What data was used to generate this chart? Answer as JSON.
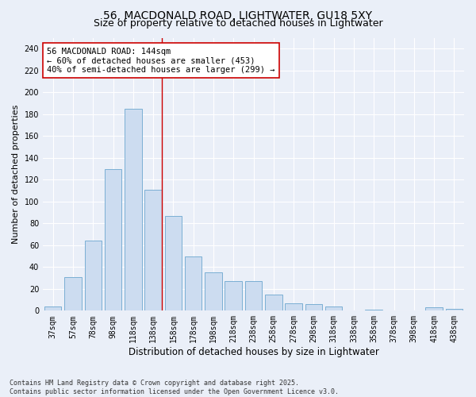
{
  "title": "56, MACDONALD ROAD, LIGHTWATER, GU18 5XY",
  "subtitle": "Size of property relative to detached houses in Lightwater",
  "xlabel": "Distribution of detached houses by size in Lightwater",
  "ylabel": "Number of detached properties",
  "categories": [
    "37sqm",
    "57sqm",
    "78sqm",
    "98sqm",
    "118sqm",
    "138sqm",
    "158sqm",
    "178sqm",
    "198sqm",
    "218sqm",
    "238sqm",
    "258sqm",
    "278sqm",
    "298sqm",
    "318sqm",
    "338sqm",
    "358sqm",
    "378sqm",
    "398sqm",
    "418sqm",
    "438sqm"
  ],
  "values": [
    4,
    31,
    64,
    130,
    185,
    111,
    87,
    50,
    35,
    27,
    27,
    15,
    7,
    6,
    4,
    0,
    1,
    0,
    0,
    3,
    2
  ],
  "bar_color": "#ccdcf0",
  "bar_edge_color": "#7bafd4",
  "vline_x_index": 5.42,
  "vline_color": "#cc0000",
  "annotation_text": "56 MACDONALD ROAD: 144sqm\n← 60% of detached houses are smaller (453)\n40% of semi-detached houses are larger (299) →",
  "annotation_box_color": "#ffffff",
  "annotation_box_edge": "#cc0000",
  "ylim": [
    0,
    250
  ],
  "yticks": [
    0,
    20,
    40,
    60,
    80,
    100,
    120,
    140,
    160,
    180,
    200,
    220,
    240
  ],
  "background_color": "#eaeff8",
  "grid_color": "#ffffff",
  "footer": "Contains HM Land Registry data © Crown copyright and database right 2025.\nContains public sector information licensed under the Open Government Licence v3.0.",
  "title_fontsize": 10,
  "subtitle_fontsize": 9,
  "xlabel_fontsize": 8.5,
  "ylabel_fontsize": 8,
  "tick_fontsize": 7,
  "annotation_fontsize": 7.5,
  "footer_fontsize": 6
}
